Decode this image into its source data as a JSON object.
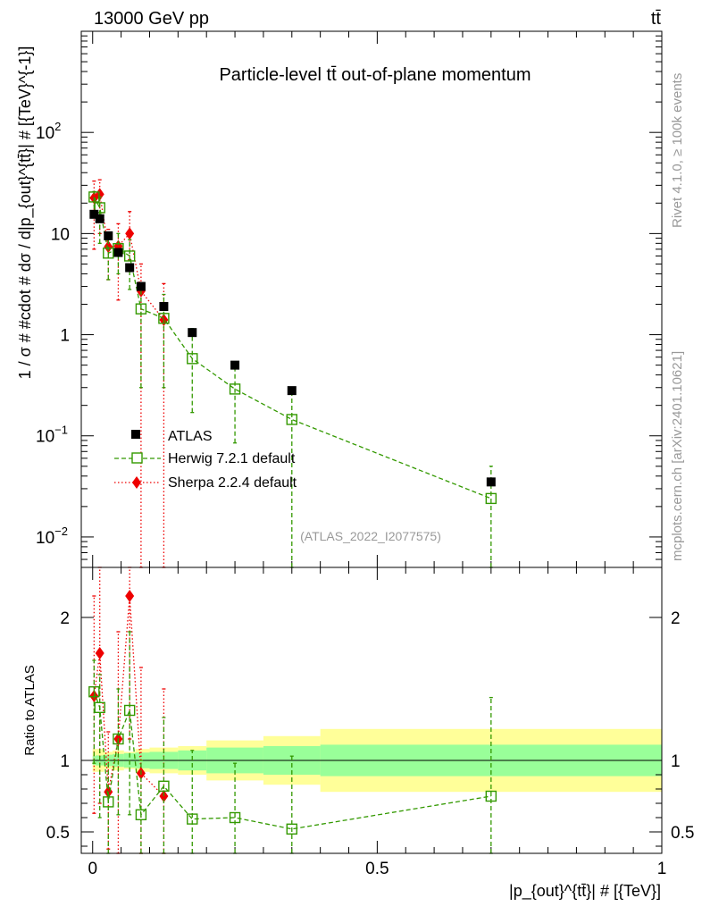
{
  "header": {
    "energy": "13000 GeV pp",
    "process": "tt̄"
  },
  "side": {
    "rivet": "Rivet 4.1.0, ≥ 100k events",
    "mcplots": "mcplots.cern.ch [arXiv:2401.10621]"
  },
  "chart_data": [
    {
      "type": "scatter",
      "panel": "main",
      "title": "Particle-level tt̄ out-of-plane momentum",
      "analysis_label": "(ATLAS_2022_I2077575)",
      "ylabel": "1 / σ # #cdot # dσ / d|p_{out}^{tt̄}| # [{TeV}^{-1}]",
      "yscale": "log",
      "ylim": [
        0.005,
        1000
      ],
      "xlim": [
        -0.02,
        1.0
      ],
      "ytick_values": [
        0.01,
        0.1,
        1,
        10,
        100
      ],
      "ytick_labels": [
        {
          "base": "10",
          "exp": "−2"
        },
        {
          "base": "10",
          "exp": "−1"
        },
        {
          "base": "1",
          "exp": ""
        },
        {
          "base": "10",
          "exp": ""
        },
        {
          "base": "10",
          "exp": "2"
        }
      ],
      "legend": [
        "ATLAS",
        "Herwig 7.2.1 default",
        "Sherpa 2.2.4 default"
      ],
      "series": [
        {
          "name": "ATLAS",
          "color": "#000000",
          "marker": "square-filled",
          "x": [
            0.0025,
            0.0125,
            0.0275,
            0.045,
            0.065,
            0.085,
            0.125,
            0.175,
            0.25,
            0.35,
            0.7
          ],
          "y": [
            15.5,
            14,
            9.5,
            6.5,
            4.6,
            3.0,
            1.9,
            1.05,
            0.5,
            0.28,
            0.035
          ],
          "yerr_lo": [
            14.9,
            13.5,
            9.1,
            6.2,
            4.4,
            2.85,
            1.8,
            1.0,
            0.48,
            0.27,
            0.033
          ],
          "yerr_hi": [
            16.1,
            14.5,
            9.9,
            6.8,
            4.8,
            3.15,
            2.0,
            1.1,
            0.52,
            0.29,
            0.037
          ]
        },
        {
          "name": "Herwig 7.2.1 default",
          "color": "#339900",
          "marker": "square-open",
          "x": [
            0.0025,
            0.0125,
            0.0275,
            0.045,
            0.065,
            0.085,
            0.125,
            0.175,
            0.25,
            0.35,
            0.7
          ],
          "y": [
            23,
            18,
            6.4,
            7.1,
            6.0,
            1.8,
            1.45,
            0.58,
            0.29,
            0.145,
            0.024
          ],
          "yerr_lo": [
            15,
            8,
            3.5,
            4.0,
            2.8,
            0.3,
            0.3,
            0.17,
            0.085,
            0.004,
            0.004
          ],
          "yerr_hi": [
            26,
            23,
            9.5,
            10.0,
            8.7,
            3.0,
            2.5,
            1.15,
            0.5,
            0.27,
            0.05
          ]
        },
        {
          "name": "Sherpa 2.2.4 default",
          "color": "#ee0000",
          "marker": "diamond-filled",
          "x": [
            0.0025,
            0.0125,
            0.0275,
            0.045,
            0.065,
            0.085,
            0.125
          ],
          "y": [
            22.5,
            24.5,
            7.4,
            7.5,
            10,
            2.7,
            1.4
          ],
          "yerr_lo": [
            7,
            10,
            3.5,
            2.2,
            5.5,
            0.004,
            0.004
          ],
          "yerr_hi": [
            33,
            34,
            11.0,
            12.5,
            16.5,
            5.0,
            3.2
          ]
        }
      ]
    },
    {
      "type": "scatter",
      "panel": "ratio",
      "ylabel": "Ratio to ATLAS",
      "xlabel": "|p_{out}^{tt̄}| # [{TeV}]",
      "ylim": [
        0.35,
        2.35
      ],
      "xlim": [
        -0.02,
        1.0
      ],
      "xtick_values": [
        0,
        0.5,
        1
      ],
      "xtick_labels": [
        "0",
        "0.5",
        "1"
      ],
      "ytick_values": [
        0.5,
        1,
        2
      ],
      "ytick_labels": [
        "0.5",
        "1",
        "2"
      ],
      "bands": {
        "edges": [
          0,
          0.005,
          0.02,
          0.035,
          0.055,
          0.075,
          0.1,
          0.15,
          0.2,
          0.3,
          0.4,
          1.0
        ],
        "stat": [
          0.03,
          0.035,
          0.04,
          0.045,
          0.05,
          0.055,
          0.06,
          0.07,
          0.09,
          0.1,
          0.11
        ],
        "total": [
          0.08,
          0.08,
          0.06,
          0.07,
          0.06,
          0.08,
          0.09,
          0.1,
          0.14,
          0.17,
          0.22
        ]
      },
      "series": [
        {
          "name": "Herwig 7.2.1 default",
          "color": "#339900",
          "marker": "square-open",
          "x": [
            0.0025,
            0.0125,
            0.0275,
            0.045,
            0.065,
            0.085,
            0.125,
            0.175,
            0.25,
            0.35,
            0.7
          ],
          "y": [
            1.48,
            1.37,
            0.71,
            1.15,
            1.35,
            0.62,
            0.82,
            0.59,
            0.6,
            0.52,
            0.75
          ],
          "yerr_lo": [
            0.98,
            0.6,
            0.35,
            0.62,
            0.62,
            0.1,
            0.18,
            0.17,
            0.17,
            0.02,
            0.02
          ],
          "yerr_hi": [
            1.7,
            1.6,
            1.0,
            1.5,
            1.9,
            1.0,
            1.3,
            1.07,
            0.98,
            1.03,
            1.44
          ]
        },
        {
          "name": "Sherpa 2.2.4 default",
          "color": "#ee0000",
          "marker": "diamond-filled",
          "x": [
            0.0025,
            0.0125,
            0.0275,
            0.045,
            0.065,
            0.085,
            0.125
          ],
          "y": [
            1.45,
            1.75,
            0.78,
            1.15,
            2.15,
            0.91,
            0.75
          ],
          "yerr_lo": [
            0.63,
            0.7,
            0.38,
            0.34,
            1.15,
            0.02,
            0.02
          ],
          "yerr_hi": [
            2.15,
            2.4,
            1.2,
            1.9,
            2.4,
            1.65,
            1.5
          ]
        }
      ]
    }
  ]
}
